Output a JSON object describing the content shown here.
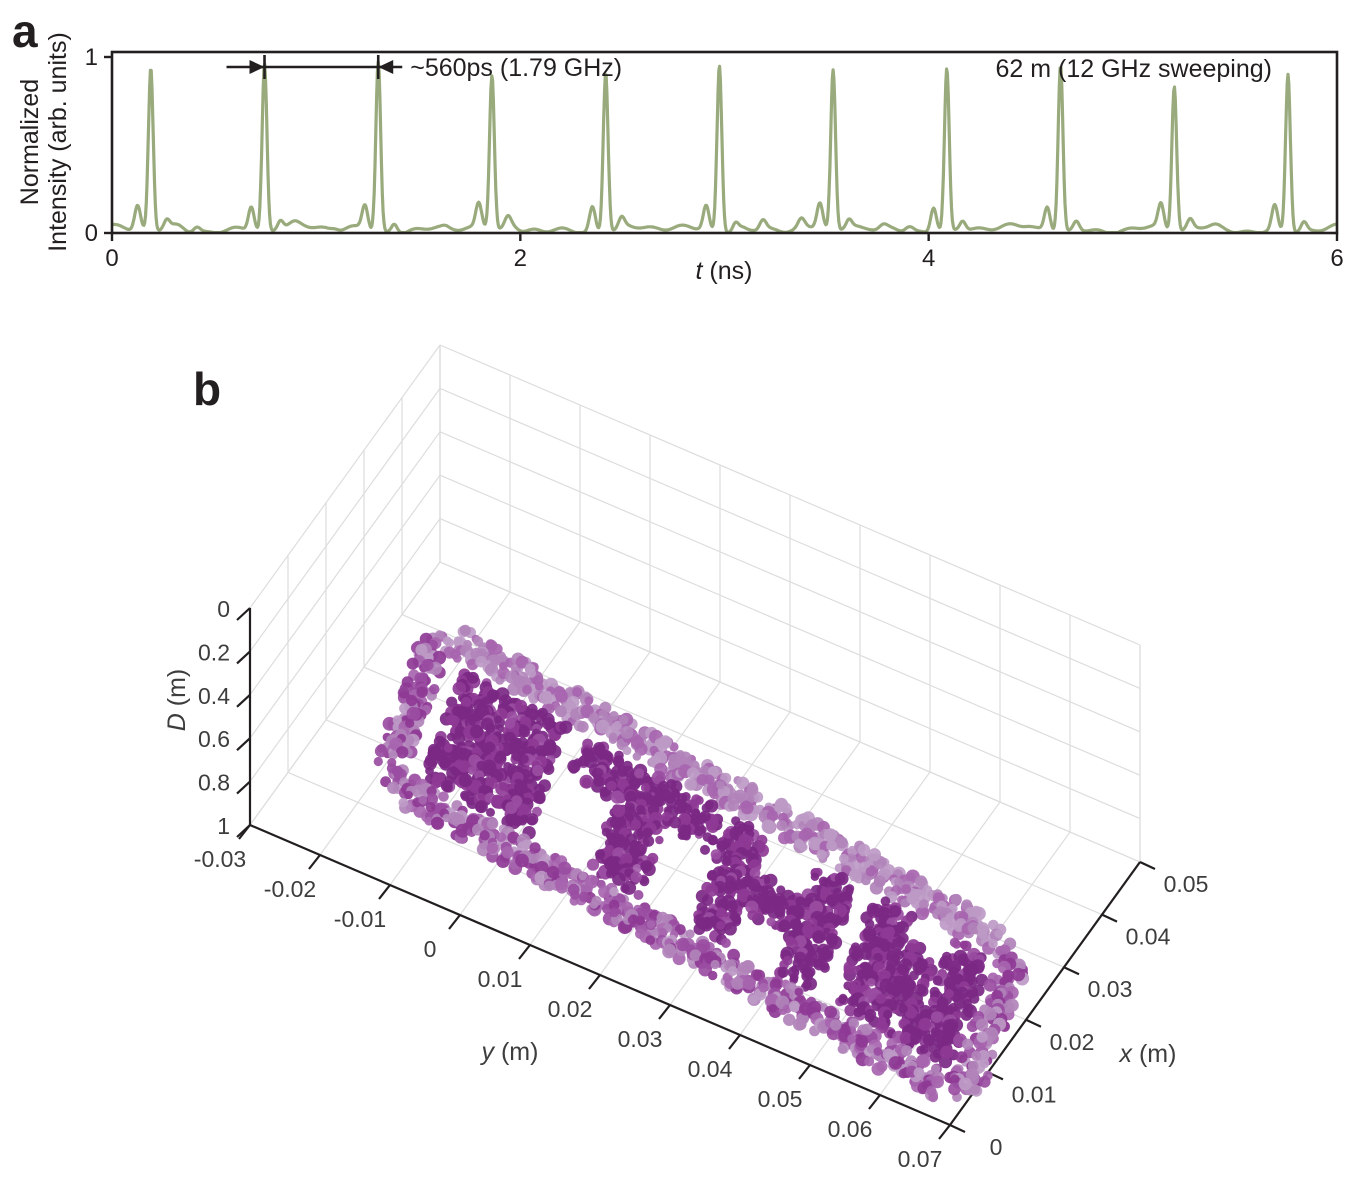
{
  "figure": {
    "panel_a_label": "a",
    "panel_b_label": "b"
  },
  "panel_a": {
    "ylabel_line1": "Normalized",
    "ylabel_line2": "Intensity (arb. units)",
    "xlabel_var": "t",
    "xlabel_unit": " (ns)",
    "xticks": [
      "0",
      "2",
      "4",
      "6"
    ],
    "yticks": [
      "1",
      "0"
    ],
    "annotation_period": "~560ps (1.79 GHz)",
    "annotation_range": "62 m (12 GHz sweeping)",
    "line_color": "#99aa7d"
  },
  "panel_b": {
    "xlabel_var": "x",
    "xlabel_unit": " (m)",
    "ylabel_var": "y",
    "ylabel_unit": " (m)",
    "zlabel_var": "D",
    "zlabel_unit": " (m)",
    "xticks": [
      "0",
      "0.01",
      "0.02",
      "0.03",
      "0.04",
      "0.05"
    ],
    "yticks": [
      "-0.03",
      "-0.02",
      "-0.01",
      "0",
      "0.01",
      "0.02",
      "0.03",
      "0.04",
      "0.05",
      "0.06",
      "0.07"
    ],
    "zticks": [
      "0",
      "0.2",
      "0.4",
      "0.6",
      "0.8",
      "1"
    ]
  },
  "chart_data": [
    {
      "type": "line",
      "panel": "a",
      "xlabel": "t (ns)",
      "ylabel": "Normalized Intensity (arb. units)",
      "xlim": [
        0,
        6
      ],
      "ylim": [
        0,
        1
      ],
      "line_color": "#99aa7d",
      "pulse_train": {
        "first_peak_ns": 0.19,
        "period_ns": 0.557,
        "period_label": "~560ps (1.79 GHz)",
        "peak_times_ns": [
          0.19,
          0.747,
          1.304,
          1.861,
          2.418,
          2.975,
          3.532,
          4.089,
          4.646,
          5.203,
          5.76
        ],
        "peak_amplitudes": [
          0.93,
          0.96,
          0.97,
          0.89,
          0.91,
          0.95,
          0.92,
          0.93,
          0.95,
          0.83,
          0.9
        ],
        "noise_floor_level": 0.05
      },
      "annotation_between_peaks": [
        0.747,
        1.304
      ],
      "distance_label": "62 m (12 GHz sweeping)"
    },
    {
      "type": "scatter3d",
      "panel": "b",
      "description": "LiDAR depth point cloud of a plaque: rounded rectangular border enclosing a solid square logo block and the letters THU, tilted in depth",
      "xlabel": "x (m)",
      "ylabel": "y (m)",
      "zlabel": "D (m)",
      "xlim": [
        0,
        0.05
      ],
      "ylim": [
        -0.03,
        0.07
      ],
      "zlim": [
        0,
        1
      ],
      "z_axis_reversed": true,
      "grid": true,
      "point_palette": [
        "#7b2884",
        "#8e3a95",
        "#9a4da2",
        "#a765af",
        "#b183ba",
        "#bd9ac5"
      ],
      "mask_legend": {
        "#": "point",
        "D": "dense dark point",
        ".": "empty"
      },
      "object_mask_rows": [
        "...################################################...",
        ".####################################################.",
        "##..................................................##",
        "##..#########..############.###.....###..###....###.##",
        "##..#########..############.###.....###..###....###.##",
        "##..#########..############.###.....###..###DDD.###.##",
        "##..#########......####.....###########..###DDD.###.##",
        "##..#########......####.....###########..###DDD.###.##",
        "##..#########......####.....###########..###DDD.###.##",
        "##..#########......####.....###.....###..###DDD####.##",
        "##..#########......####.....###.....###..##########.##",
        "##..#########......####.....###.....###..##########.##",
        "##..................................................##",
        ".####################################################.",
        "...################################################..."
      ]
    }
  ]
}
